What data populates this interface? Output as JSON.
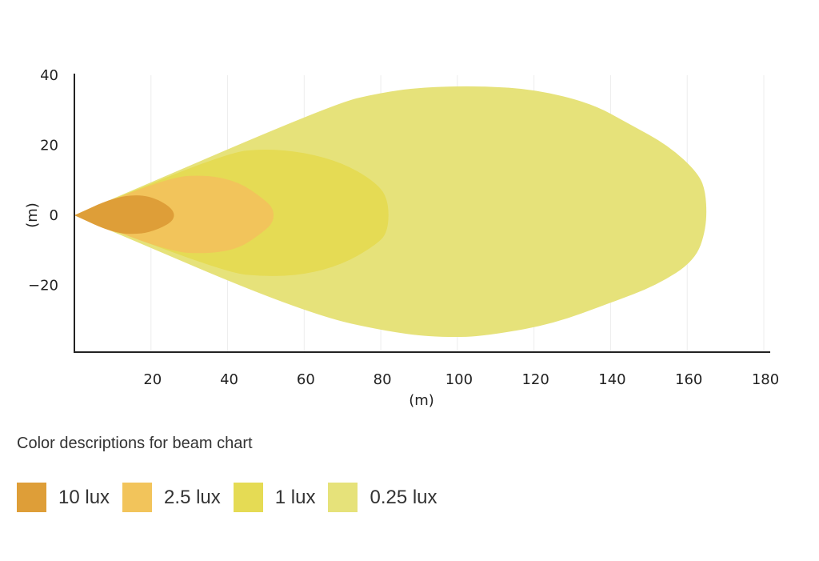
{
  "chart_data": {
    "type": "area",
    "title": "",
    "xlabel": "(m)",
    "ylabel": "(m)",
    "xlim": [
      0,
      180
    ],
    "ylim": [
      -40,
      40
    ],
    "xticks": [
      20,
      40,
      60,
      80,
      100,
      120,
      140,
      160,
      180
    ],
    "yticks": [
      40,
      20,
      0,
      -20
    ],
    "grid": "vertical",
    "legend_title": "Color descriptions for beam chart",
    "legend_placement": "bottom-left",
    "series": [
      {
        "name": "0.25 lux",
        "color": "#e6e27a",
        "points": [
          [
            0,
            0
          ],
          [
            68,
            32
          ],
          [
            80,
            35
          ],
          [
            90,
            36.5
          ],
          [
            105,
            37
          ],
          [
            120,
            36
          ],
          [
            135,
            32
          ],
          [
            145,
            26
          ],
          [
            155,
            20
          ],
          [
            163,
            12
          ],
          [
            165,
            6
          ],
          [
            165,
            -4
          ],
          [
            162,
            -13
          ],
          [
            152,
            -20
          ],
          [
            140,
            -25
          ],
          [
            125,
            -31
          ],
          [
            110,
            -34
          ],
          [
            100,
            -35
          ],
          [
            85,
            -34
          ],
          [
            60,
            -28
          ],
          [
            0,
            0
          ]
        ]
      },
      {
        "name": "1 lux",
        "color": "#e5db54",
        "points": [
          [
            0,
            0
          ],
          [
            40,
            18
          ],
          [
            50,
            19
          ],
          [
            60,
            18
          ],
          [
            70,
            15
          ],
          [
            78,
            10
          ],
          [
            82,
            5
          ],
          [
            82,
            -5
          ],
          [
            78,
            -9
          ],
          [
            70,
            -14
          ],
          [
            60,
            -17
          ],
          [
            50,
            -17.5
          ],
          [
            40,
            -16.5
          ],
          [
            0,
            0
          ]
        ]
      },
      {
        "name": "2.5 lux",
        "color": "#f2c45b",
        "points": [
          [
            0,
            0
          ],
          [
            25,
            11
          ],
          [
            35,
            11.5
          ],
          [
            43,
            9.5
          ],
          [
            49,
            5
          ],
          [
            52,
            2
          ],
          [
            52,
            -2
          ],
          [
            49,
            -5
          ],
          [
            43,
            -9.5
          ],
          [
            35,
            -11
          ],
          [
            25,
            -10.5
          ],
          [
            0,
            0
          ]
        ]
      },
      {
        "name": "10 lux",
        "color": "#de9e38",
        "points": [
          [
            0,
            0
          ],
          [
            10,
            5
          ],
          [
            17,
            6
          ],
          [
            22,
            4.5
          ],
          [
            26,
            1.5
          ],
          [
            26,
            -1.5
          ],
          [
            22,
            -4
          ],
          [
            17,
            -5.5
          ],
          [
            10,
            -5
          ],
          [
            0,
            0
          ]
        ]
      }
    ],
    "legend": [
      {
        "label": "10 lux",
        "color": "#de9e38"
      },
      {
        "label": "2.5 lux",
        "color": "#f2c45b"
      },
      {
        "label": "1 lux",
        "color": "#e5db54"
      },
      {
        "label": "0.25 lux",
        "color": "#e6e27a"
      }
    ]
  }
}
